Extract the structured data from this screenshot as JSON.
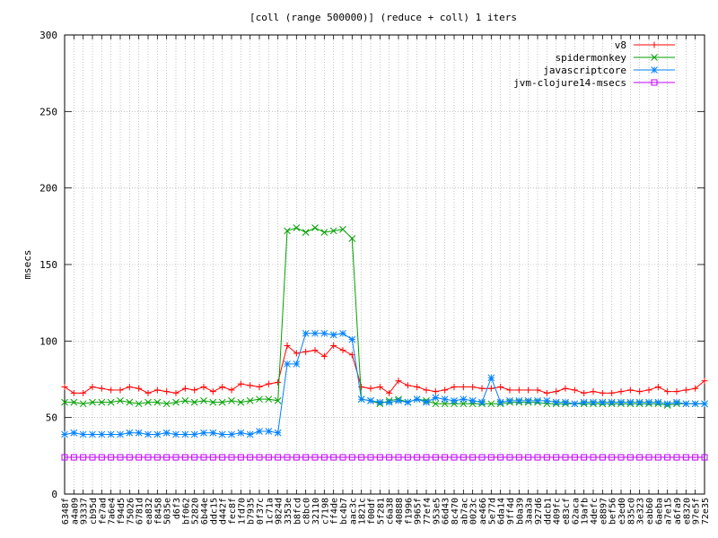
{
  "chart_data": {
    "type": "line",
    "title": "[coll (range 500000)] (reduce + coll) 1 iters",
    "xlabel": "",
    "ylabel": "msecs",
    "ylim": [
      0,
      300
    ],
    "yticks": [
      0,
      50,
      100,
      150,
      200,
      250,
      300
    ],
    "grid": true,
    "legend_position": "top-right",
    "categories": [
      "6348f",
      "a4a09",
      "93337",
      "cb95d",
      "fe7ad",
      "7a6e4",
      "f94d5",
      "75026",
      "6781d",
      "ea832",
      "f8458",
      "5035e",
      "d6f3",
      "bf062",
      "52820",
      "6b44e",
      "ddc15",
      "d442f",
      "fec8f",
      "1fd70",
      "b7935",
      "0f37c",
      "1c71a",
      "9824d",
      "3353e",
      "b8fcd",
      "c8bc0",
      "32110",
      "c7198",
      "ff4de",
      "bc4b7",
      "aac3c",
      "1821c",
      "f00df",
      "5f281",
      "c6a38",
      "40888",
      "f1996",
      "9965f",
      "77ef4",
      "953e5",
      "66d43",
      "8c470",
      "ab7ac",
      "0023c",
      "ae466",
      "5e77d",
      "6da14",
      "9ff4d",
      "b0a39",
      "3aa3a",
      "927d6",
      "ddcb1",
      "409fc",
      "e83cf",
      "62aca",
      "19afb",
      "4defc",
      "e8897",
      "bef56",
      "e3ed0",
      "835c0",
      "3e323",
      "eab60",
      "6aeba",
      "a7e15",
      "a6fa9",
      "e8320",
      "97e5f",
      "72e35"
    ],
    "series": [
      {
        "name": "v8",
        "color": "#ff0000",
        "marker": "plus",
        "values": [
          70,
          66,
          66,
          70,
          69,
          68,
          68,
          70,
          69,
          66,
          68,
          67,
          66,
          69,
          68,
          70,
          67,
          70,
          68,
          72,
          71,
          70,
          72,
          73,
          97,
          92,
          93,
          94,
          90,
          97,
          94,
          91,
          70,
          69,
          70,
          66,
          74,
          71,
          70,
          68,
          67,
          68,
          70,
          70,
          70,
          69,
          69,
          70,
          68,
          68,
          68,
          68,
          66,
          67,
          69,
          68,
          66,
          67,
          66,
          66,
          67,
          68,
          67,
          68,
          70,
          67,
          67,
          68,
          69,
          74
        ]
      },
      {
        "name": "spidermonkey",
        "color": "#00a000",
        "marker": "x",
        "values": [
          60,
          60,
          59,
          60,
          60,
          60,
          61,
          60,
          59,
          60,
          60,
          59,
          60,
          61,
          60,
          61,
          60,
          60,
          61,
          60,
          61,
          62,
          62,
          61,
          172,
          174,
          171,
          174,
          171,
          172,
          173,
          167,
          62,
          61,
          59,
          61,
          62,
          60,
          62,
          61,
          59,
          59,
          59,
          59,
          59,
          59,
          59,
          59,
          60,
          60,
          60,
          60,
          59,
          59,
          59,
          59,
          59,
          59,
          59,
          59,
          59,
          59,
          59,
          59,
          59,
          58,
          59,
          59,
          59,
          59
        ]
      },
      {
        "name": "javascriptcore",
        "color": "#0080ff",
        "marker": "star",
        "values": [
          39,
          40,
          39,
          39,
          39,
          39,
          39,
          40,
          40,
          39,
          39,
          40,
          39,
          39,
          39,
          40,
          40,
          39,
          39,
          40,
          39,
          41,
          41,
          40,
          85,
          85,
          105,
          105,
          105,
          104,
          105,
          101,
          62,
          61,
          60,
          60,
          61,
          60,
          62,
          60,
          63,
          62,
          61,
          62,
          61,
          60,
          76,
          60,
          61,
          61,
          61,
          61,
          61,
          60,
          60,
          59,
          60,
          60,
          60,
          60,
          60,
          60,
          60,
          60,
          60,
          59,
          60,
          59,
          59,
          59
        ]
      },
      {
        "name": "jvm-clojure14-msecs",
        "color": "#c000ff",
        "marker": "square",
        "values": [
          24,
          24,
          24,
          24,
          24,
          24,
          24,
          24,
          24,
          24,
          24,
          24,
          24,
          24,
          24,
          24,
          24,
          24,
          24,
          24,
          24,
          24,
          24,
          24,
          24,
          24,
          24,
          24,
          24,
          24,
          24,
          24,
          24,
          24,
          24,
          24,
          24,
          24,
          24,
          24,
          24,
          24,
          24,
          24,
          24,
          24,
          24,
          24,
          24,
          24,
          24,
          24,
          24,
          24,
          24,
          24,
          24,
          24,
          24,
          24,
          24,
          24,
          24,
          24,
          24,
          24,
          24,
          24,
          24,
          24
        ]
      }
    ]
  }
}
